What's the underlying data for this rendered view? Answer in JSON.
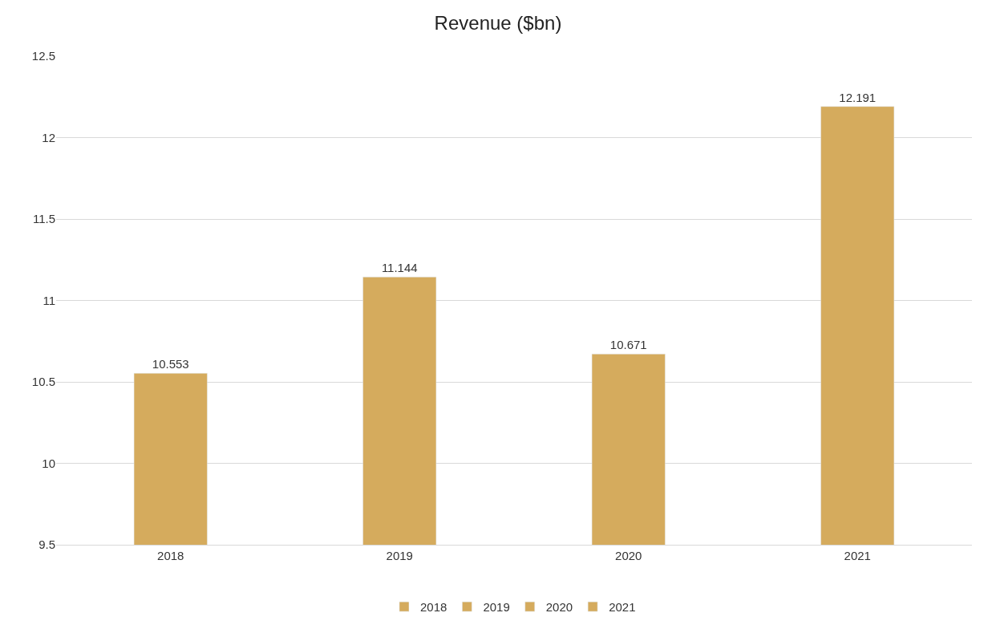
{
  "chart_data": {
    "type": "bar",
    "title": "Revenue ($bn)",
    "categories": [
      "2018",
      "2019",
      "2020",
      "2021"
    ],
    "series": [
      {
        "name": "2018",
        "color": "#d5ab5d",
        "values": [
          10.553,
          null,
          null,
          null
        ]
      },
      {
        "name": "2019",
        "color": "#d5ab5d",
        "values": [
          null,
          11.144,
          null,
          null
        ]
      },
      {
        "name": "2020",
        "color": "#d5ab5d",
        "values": [
          null,
          null,
          10.671,
          null
        ]
      },
      {
        "name": "2021",
        "color": "#d5ab5d",
        "values": [
          null,
          null,
          null,
          12.191
        ]
      }
    ],
    "ylim": [
      9.5,
      12.5
    ],
    "yticks": [
      9.5,
      10,
      10.5,
      11,
      11.5,
      12,
      12.5
    ],
    "grid": "y",
    "legend": "bottom",
    "data_labels": true
  }
}
